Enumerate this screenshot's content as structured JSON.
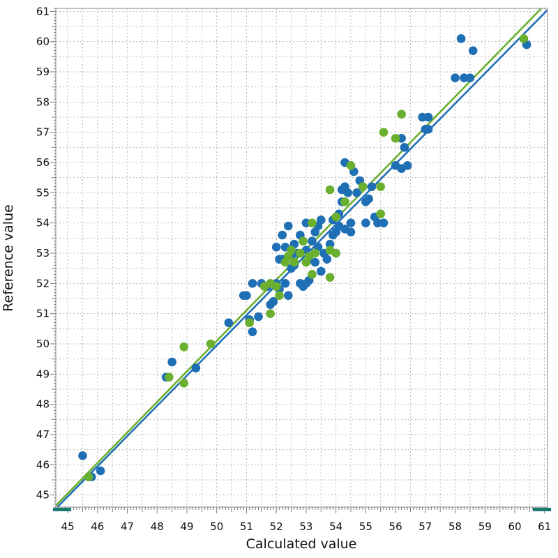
{
  "chart_data": {
    "type": "scatter",
    "xlabel": "Calculated value",
    "ylabel": "Reference value",
    "xlim": [
      44.6,
      61.1
    ],
    "ylim": [
      44.6,
      61.1
    ],
    "x_ticks": [
      45,
      46,
      47,
      48,
      49,
      50,
      51,
      52,
      53,
      54,
      55,
      56,
      57,
      58,
      59,
      60,
      61
    ],
    "y_ticks": [
      45,
      46,
      47,
      48,
      49,
      50,
      51,
      52,
      53,
      54,
      55,
      56,
      57,
      58,
      59,
      60,
      61
    ],
    "grid": true,
    "series": [
      {
        "color": "#1f6fb5",
        "points": [
          [
            45.5,
            46.3
          ],
          [
            45.8,
            45.6
          ],
          [
            46.1,
            45.8
          ],
          [
            48.3,
            48.9
          ],
          [
            48.5,
            49.4
          ],
          [
            49.3,
            49.2
          ],
          [
            50.4,
            50.7
          ],
          [
            50.9,
            51.6
          ],
          [
            51.0,
            51.6
          ],
          [
            51.1,
            50.8
          ],
          [
            51.2,
            50.4
          ],
          [
            51.2,
            52.0
          ],
          [
            51.4,
            50.9
          ],
          [
            51.5,
            52.0
          ],
          [
            51.7,
            51.9
          ],
          [
            51.8,
            51.3
          ],
          [
            51.9,
            51.4
          ],
          [
            52.0,
            52.0
          ],
          [
            52.1,
            51.8
          ],
          [
            52.1,
            52.8
          ],
          [
            52.0,
            53.2
          ],
          [
            52.2,
            52.8
          ],
          [
            52.2,
            53.6
          ],
          [
            52.3,
            53.2
          ],
          [
            52.3,
            52.0
          ],
          [
            52.4,
            53.9
          ],
          [
            52.4,
            51.6
          ],
          [
            52.5,
            52.5
          ],
          [
            52.5,
            52.9
          ],
          [
            52.6,
            53.3
          ],
          [
            52.6,
            52.6
          ],
          [
            52.7,
            53.0
          ],
          [
            52.8,
            53.6
          ],
          [
            52.8,
            52.0
          ],
          [
            52.9,
            51.9
          ],
          [
            53.0,
            54.0
          ],
          [
            53.0,
            52.0
          ],
          [
            53.0,
            53.1
          ],
          [
            53.1,
            52.8
          ],
          [
            53.1,
            52.1
          ],
          [
            53.2,
            53.4
          ],
          [
            53.3,
            53.7
          ],
          [
            53.3,
            52.7
          ],
          [
            53.4,
            53.9
          ],
          [
            53.4,
            53.2
          ],
          [
            53.5,
            54.1
          ],
          [
            53.5,
            52.4
          ],
          [
            53.6,
            53.0
          ],
          [
            53.7,
            52.8
          ],
          [
            53.8,
            53.3
          ],
          [
            53.9,
            53.6
          ],
          [
            53.9,
            54.1
          ],
          [
            54.0,
            53.7
          ],
          [
            54.0,
            53.0
          ],
          [
            54.1,
            53.9
          ],
          [
            54.1,
            54.3
          ],
          [
            54.2,
            55.1
          ],
          [
            54.2,
            54.7
          ],
          [
            54.3,
            55.2
          ],
          [
            54.3,
            56.0
          ],
          [
            54.3,
            53.8
          ],
          [
            54.4,
            55.0
          ],
          [
            54.5,
            54.0
          ],
          [
            54.5,
            53.7
          ],
          [
            54.6,
            55.7
          ],
          [
            54.7,
            55.0
          ],
          [
            54.8,
            55.4
          ],
          [
            54.9,
            55.2
          ],
          [
            55.0,
            54.7
          ],
          [
            55.0,
            54.0
          ],
          [
            55.1,
            54.8
          ],
          [
            55.2,
            55.2
          ],
          [
            55.3,
            54.2
          ],
          [
            55.4,
            54.0
          ],
          [
            55.6,
            54.0
          ],
          [
            56.0,
            55.9
          ],
          [
            56.2,
            55.8
          ],
          [
            56.3,
            56.5
          ],
          [
            56.4,
            55.9
          ],
          [
            56.2,
            56.8
          ],
          [
            56.9,
            57.5
          ],
          [
            57.0,
            57.1
          ],
          [
            57.1,
            57.5
          ],
          [
            57.1,
            57.1
          ],
          [
            58.0,
            58.8
          ],
          [
            58.2,
            60.1
          ],
          [
            58.3,
            58.8
          ],
          [
            58.5,
            58.8
          ],
          [
            58.6,
            59.7
          ],
          [
            60.4,
            59.9
          ]
        ]
      },
      {
        "color": "#6aaf2e",
        "points": [
          [
            45.7,
            45.6
          ],
          [
            48.4,
            48.9
          ],
          [
            48.9,
            49.9
          ],
          [
            48.9,
            48.7
          ],
          [
            49.8,
            50.0
          ],
          [
            51.1,
            50.7
          ],
          [
            51.6,
            51.9
          ],
          [
            51.8,
            52.0
          ],
          [
            51.8,
            51.0
          ],
          [
            52.0,
            51.9
          ],
          [
            52.1,
            51.6
          ],
          [
            52.3,
            52.7
          ],
          [
            52.4,
            52.9
          ],
          [
            52.5,
            53.1
          ],
          [
            52.6,
            52.7
          ],
          [
            52.8,
            53.0
          ],
          [
            52.9,
            53.4
          ],
          [
            53.0,
            52.7
          ],
          [
            53.1,
            52.9
          ],
          [
            53.2,
            54.0
          ],
          [
            53.2,
            52.3
          ],
          [
            53.3,
            53.0
          ],
          [
            53.8,
            55.1
          ],
          [
            53.8,
            52.2
          ],
          [
            53.8,
            53.1
          ],
          [
            54.0,
            54.2
          ],
          [
            54.0,
            53.0
          ],
          [
            54.3,
            54.7
          ],
          [
            54.5,
            55.9
          ],
          [
            54.9,
            55.2
          ],
          [
            55.5,
            55.2
          ],
          [
            55.5,
            54.3
          ],
          [
            55.6,
            57.0
          ],
          [
            56.0,
            56.8
          ],
          [
            56.2,
            57.6
          ],
          [
            60.3,
            60.1
          ]
        ]
      }
    ],
    "fit_lines": [
      {
        "color": "#1f6fb5",
        "slope": 1.0,
        "intercept": -0.05
      },
      {
        "color": "#6aaf2e",
        "slope": 1.01,
        "intercept": -0.4
      }
    ]
  }
}
